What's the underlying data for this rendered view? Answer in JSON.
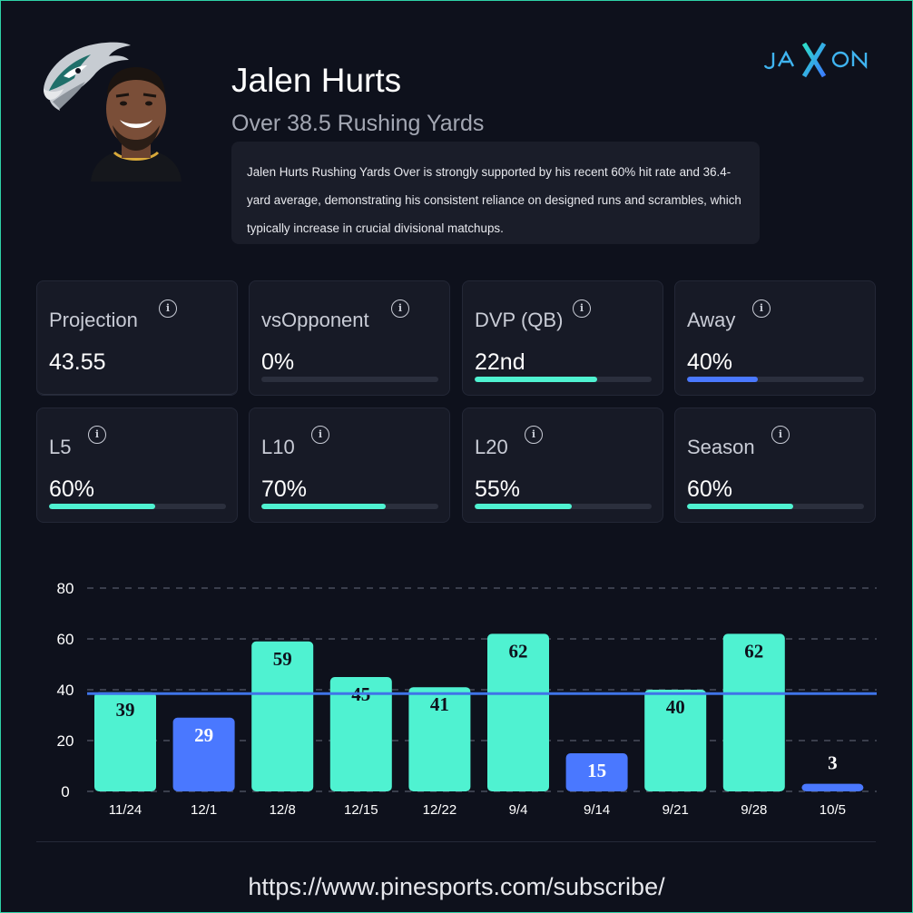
{
  "brand": {
    "logo_text": "JAXON",
    "accent": "#4fc3f7"
  },
  "team_logo_icon": "eagle-head-icon",
  "player": {
    "name": "Jalen Hurts",
    "prop": "Over 38.5 Rushing Yards",
    "summary": "Jalen Hurts Rushing Yards Over is strongly supported by his recent 60% hit rate and 36.4-yard average, demonstrating his consistent reliance on designed runs and scrambles, which typically increase in crucial divisional matchups."
  },
  "stats": [
    {
      "label": "Projection",
      "value": "43.55"
    },
    {
      "label": "vsOpponent",
      "value": "0%",
      "fill": 0.0,
      "color": "#4ff2d1"
    },
    {
      "label": "DVP (QB)",
      "value": "22nd",
      "fill": 0.69,
      "color": "#4ff2d1"
    },
    {
      "label": "Away",
      "value": "40%",
      "fill": 0.4,
      "color": "#4a78ff"
    },
    {
      "label": "L5",
      "value": "60%",
      "fill": 0.6,
      "color": "#4ff2d1"
    },
    {
      "label": "L10",
      "value": "70%",
      "fill": 0.7,
      "color": "#4ff2d1"
    },
    {
      "label": "L20",
      "value": "55%",
      "fill": 0.55,
      "color": "#4ff2d1"
    },
    {
      "label": "Season",
      "value": "60%",
      "fill": 0.6,
      "color": "#4ff2d1"
    }
  ],
  "chart_data": {
    "type": "bar",
    "categories": [
      "11/24",
      "12/1",
      "12/8",
      "12/15",
      "12/22",
      "9/4",
      "9/14",
      "9/21",
      "9/28",
      "10/5"
    ],
    "values": [
      39,
      29,
      59,
      45,
      41,
      62,
      15,
      40,
      62,
      3
    ],
    "line": 38.5,
    "ylim": [
      0,
      80
    ],
    "yticks": [
      0,
      20,
      40,
      60,
      80
    ],
    "grid": true,
    "colors": {
      "over": "#4ff2d1",
      "under": "#4a78ff",
      "line": "#3f74e8",
      "grid": "#3a3e4c"
    }
  },
  "footer": {
    "url": "https://www.pinesports.com/subscribe/"
  }
}
